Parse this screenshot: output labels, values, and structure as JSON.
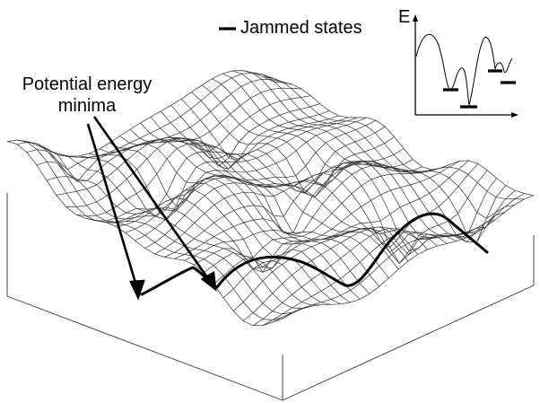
{
  "labels": {
    "minima_line1": "Potential energy",
    "minima_line2": "minima",
    "jammed": "Jammed states",
    "energy_axis": "E"
  },
  "colors": {
    "ink": "#000000",
    "mesh": "#333333",
    "background": "#ffffff"
  }
}
